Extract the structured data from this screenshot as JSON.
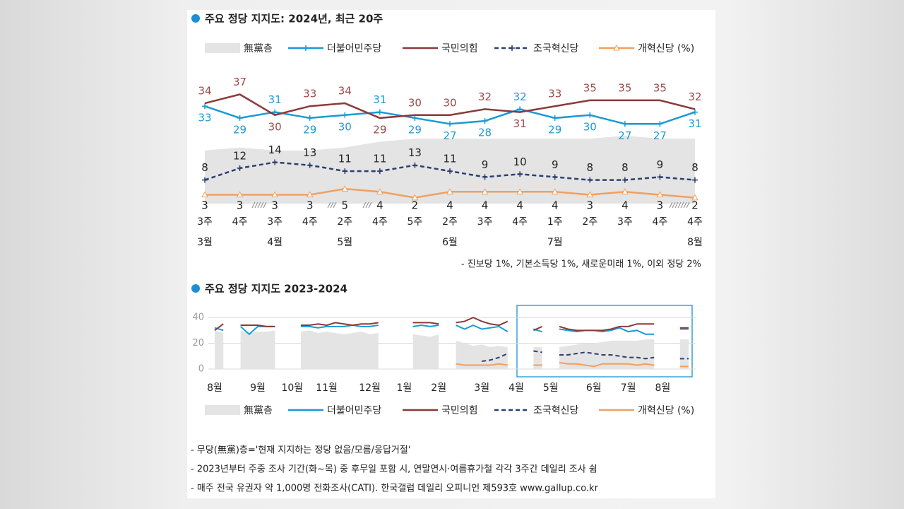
{
  "chart_data": [
    {
      "type": "line",
      "title": "주요 정당 지지도: 2024년, 최근 20주",
      "categories": [
        "3주",
        "4주",
        "3주",
        "4주",
        "2주",
        "4주",
        "5주",
        "2주",
        "3주",
        "4주",
        "1주",
        "2주",
        "3주",
        "4주",
        "4주"
      ],
      "months": [
        "3월",
        null,
        "4월",
        null,
        "5월",
        null,
        null,
        "6월",
        null,
        null,
        "7월",
        null,
        null,
        null,
        "8월"
      ],
      "ylim": [
        0,
        40
      ],
      "series": [
        {
          "name": "無黨층",
          "color": "#e4e4e4",
          "kind": "area",
          "values": [
            18,
            19,
            18,
            18,
            19,
            21,
            22,
            22,
            22,
            22,
            22,
            22,
            23,
            22,
            22
          ]
        },
        {
          "name": "더불어민주당",
          "color": "#1a9ad6",
          "kind": "line",
          "marker": "plus",
          "values": [
            33,
            29,
            31,
            29,
            30,
            31,
            29,
            27,
            28,
            32,
            29,
            30,
            27,
            27,
            31
          ]
        },
        {
          "name": "국민의힘",
          "color": "#8b3a3a",
          "kind": "line",
          "values": [
            34,
            37,
            30,
            33,
            34,
            29,
            30,
            30,
            32,
            31,
            33,
            35,
            35,
            35,
            32
          ]
        },
        {
          "name": "조국혁신당",
          "color": "#2e3f6e",
          "kind": "line",
          "dashed": true,
          "marker": "plus",
          "values": [
            8,
            12,
            14,
            13,
            11,
            11,
            13,
            11,
            9,
            10,
            9,
            8,
            8,
            9,
            8
          ]
        },
        {
          "name": "개혁신당 (%)",
          "color": "#f0a060",
          "kind": "line",
          "marker": "triangle",
          "values": [
            3,
            3,
            3,
            3,
            5,
            4,
            2,
            4,
            4,
            4,
            4,
            3,
            4,
            3,
            2
          ]
        }
      ],
      "note": "- 진보당 1%, 기본소득당 1%, 새로운미래 1%, 이외 정당 2%"
    },
    {
      "type": "line",
      "title": "주요 정당 지지도 2023-2024",
      "categories": [
        "8월",
        null,
        null,
        null,
        null,
        "9월",
        null,
        null,
        null,
        "10월",
        null,
        null,
        null,
        "11월",
        null,
        null,
        null,
        null,
        "12월",
        null,
        null,
        null,
        "1월",
        null,
        null,
        null,
        "2월",
        null,
        null,
        null,
        null,
        "3월",
        null,
        null,
        null,
        "4월",
        null,
        null,
        null,
        "5월",
        null,
        null,
        null,
        null,
        "6월",
        null,
        null,
        null,
        "7월",
        null,
        null,
        null,
        "8월",
        null,
        null,
        null,
        null
      ],
      "ylim": [
        0,
        45
      ],
      "yticks": [
        0,
        20,
        40
      ],
      "grid": true,
      "series": [
        {
          "name": "無黨층",
          "color": "#e4e4e4",
          "kind": "area",
          "values": [
            30,
            28,
            null,
            30,
            28,
            29,
            29,
            30,
            null,
            null,
            29,
            30,
            28,
            29,
            28,
            27,
            28,
            29,
            27,
            28,
            null,
            null,
            null,
            27,
            26,
            25,
            27,
            null,
            22,
            20,
            18,
            19,
            17,
            18,
            17,
            null,
            null,
            17,
            17,
            null,
            17,
            18,
            19,
            20,
            20,
            21,
            22,
            22,
            22,
            22,
            23,
            23,
            null,
            null,
            23,
            23,
            null
          ]
        },
        {
          "name": "더불어민주당",
          "color": "#1a9ad6",
          "kind": "line",
          "values": [
            32,
            30,
            null,
            33,
            27,
            33,
            33,
            33,
            null,
            null,
            33,
            33,
            32,
            33,
            33,
            33,
            34,
            33,
            33,
            34,
            null,
            null,
            null,
            33,
            34,
            33,
            34,
            null,
            34,
            31,
            34,
            31,
            32,
            33,
            29,
            null,
            null,
            31,
            29,
            null,
            31,
            30,
            29,
            30,
            30,
            29,
            30,
            32,
            29,
            30,
            27,
            27,
            null,
            null,
            31,
            31,
            null
          ]
        },
        {
          "name": "국민의힘",
          "color": "#8b3a3a",
          "kind": "line",
          "values": [
            30,
            35,
            null,
            34,
            34,
            34,
            33,
            33,
            null,
            null,
            34,
            34,
            35,
            34,
            36,
            35,
            34,
            35,
            35,
            36,
            null,
            null,
            null,
            36,
            36,
            36,
            35,
            null,
            36,
            37,
            40,
            37,
            35,
            34,
            37,
            null,
            null,
            30,
            33,
            null,
            33,
            31,
            30,
            30,
            30,
            30,
            31,
            33,
            33,
            35,
            35,
            35,
            null,
            null,
            32,
            32,
            null
          ]
        },
        {
          "name": "조국혁신당",
          "color": "#2e3f6e",
          "kind": "line",
          "dashed": true,
          "values": [
            null,
            null,
            null,
            null,
            null,
            null,
            null,
            null,
            null,
            null,
            null,
            null,
            null,
            null,
            null,
            null,
            null,
            null,
            null,
            null,
            null,
            null,
            null,
            null,
            null,
            null,
            null,
            null,
            null,
            null,
            null,
            6,
            7,
            9,
            12,
            null,
            null,
            14,
            13,
            null,
            11,
            11,
            12,
            13,
            12,
            11,
            11,
            10,
            9,
            9,
            8,
            9,
            null,
            null,
            8,
            8,
            null
          ]
        },
        {
          "name": "개혁신당 (%)",
          "color": "#f0a060",
          "kind": "line",
          "values": [
            null,
            null,
            null,
            null,
            null,
            null,
            null,
            null,
            null,
            null,
            null,
            null,
            null,
            null,
            null,
            null,
            null,
            null,
            null,
            null,
            null,
            null,
            null,
            null,
            null,
            null,
            null,
            null,
            4,
            3,
            3,
            3,
            3,
            4,
            3,
            null,
            null,
            3,
            3,
            null,
            5,
            4,
            4,
            3,
            2,
            4,
            4,
            4,
            4,
            3,
            4,
            3,
            null,
            null,
            2,
            2,
            null
          ]
        }
      ]
    }
  ],
  "notes": [
    "- 무당(無黨)층='현재 지지하는 정당 없음/모름/응답거절'",
    "- 2023년부터 주중 조사 기간(화~목) 중 후무일 포함 시, 연말연시·여름휴가철 각각 3주간 데일리 조사 쉼",
    "- 매주 전국 유권자 약 1,000명 전화조사(CATI). 한국갤럽 데일리 오피니언 제593호 www.gallup.co.kr"
  ]
}
